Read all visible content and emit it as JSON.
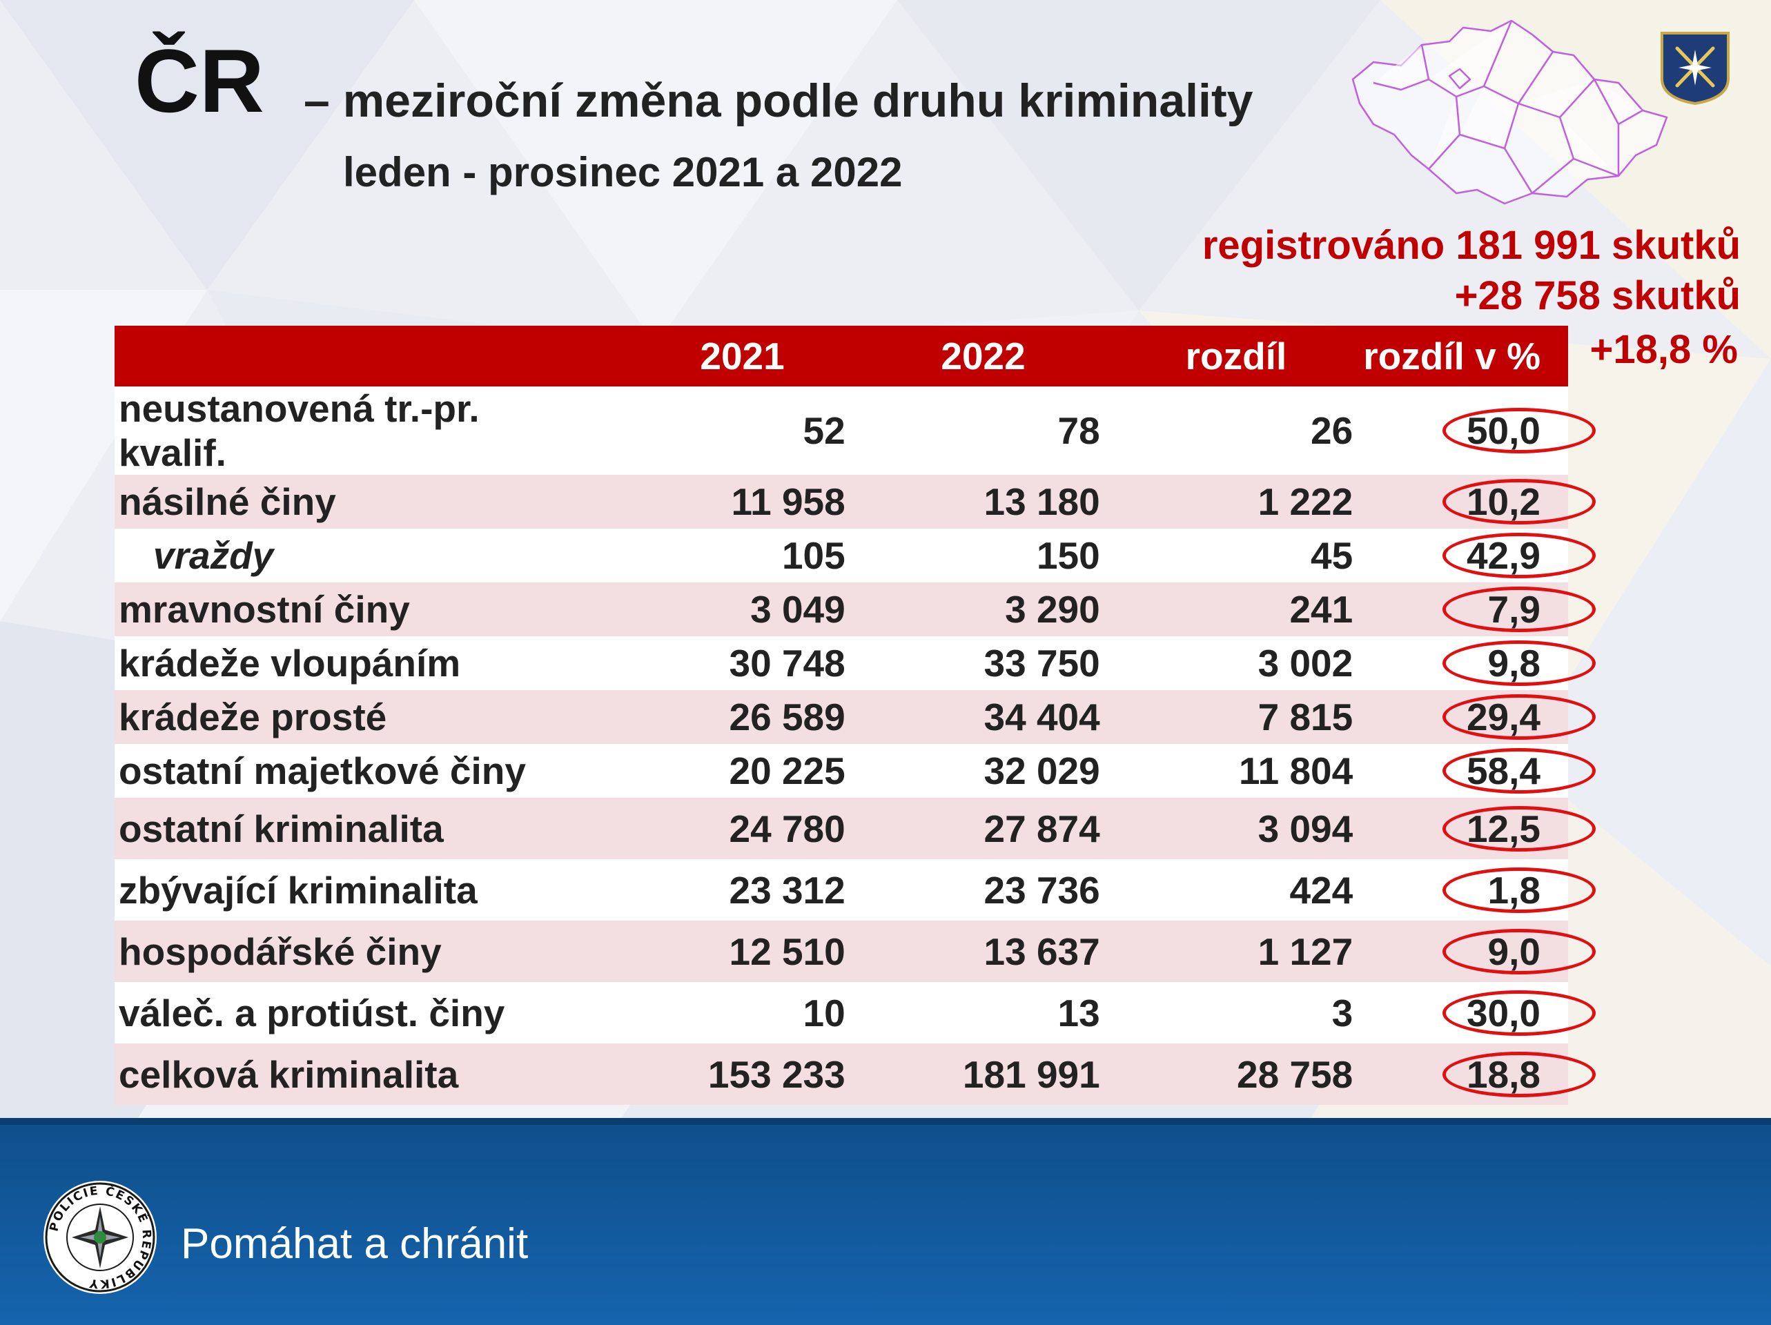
{
  "title": {
    "main": "ČR",
    "rest": "– meziroční změna podle druhu kriminality",
    "subtitle": "leden - prosinec 2021 a 2022"
  },
  "summary": {
    "registered": "registrováno 181 991 skutků",
    "diff_count": "+28 758 skutků",
    "diff_pct": "+18,8 %"
  },
  "table": {
    "headers": [
      "",
      "2021",
      "2022",
      "rozdíl",
      "rozdíl v %"
    ],
    "rows": [
      {
        "label": "neustanovená tr.-pr. kvalif.",
        "y2021": "52",
        "y2022": "78",
        "diff": "26",
        "pct": "50,0"
      },
      {
        "label": "násilné činy",
        "y2021": "11 958",
        "y2022": "13 180",
        "diff": "1 222",
        "pct": "10,2"
      },
      {
        "label": "vraždy",
        "y2021": "105",
        "y2022": "150",
        "diff": "45",
        "pct": "42,9"
      },
      {
        "label": "mravnostní činy",
        "y2021": "3 049",
        "y2022": "3 290",
        "diff": "241",
        "pct": "7,9"
      },
      {
        "label": "krádeže vloupáním",
        "y2021": "30 748",
        "y2022": "33 750",
        "diff": "3 002",
        "pct": "9,8"
      },
      {
        "label": "krádeže prosté",
        "y2021": "26 589",
        "y2022": "34 404",
        "diff": "7 815",
        "pct": "29,4"
      },
      {
        "label": "ostatní majetkové činy",
        "y2021": "20 225",
        "y2022": "32 029",
        "diff": "11 804",
        "pct": "58,4"
      },
      {
        "label": "ostatní kriminalita",
        "y2021": "24 780",
        "y2022": "27 874",
        "diff": "3 094",
        "pct": "12,5"
      },
      {
        "label": "zbývající kriminalita",
        "y2021": "23 312",
        "y2022": "23 736",
        "diff": "424",
        "pct": "1,8"
      },
      {
        "label": "hospodářské činy",
        "y2021": "12 510",
        "y2022": "13 637",
        "diff": "1 127",
        "pct": "9,0"
      },
      {
        "label": "váleč. a protiúst. činy",
        "y2021": "10",
        "y2022": "13",
        "diff": "3",
        "pct": "30,0"
      },
      {
        "label": "celková kriminalita",
        "y2021": "153 233",
        "y2022": "181 991",
        "diff": "28 758",
        "pct": "18,8"
      }
    ]
  },
  "footer": {
    "motto": "Pomáhat a chránit",
    "seal_text": "POLICIE ČESKÉ REPUBLIKY"
  },
  "colors": {
    "accent_red": "#c00000",
    "ring_red": "#e01010",
    "row_alt": "#f3dfe1",
    "footer_blue": "#1564ad",
    "map_outline": "#c060e0"
  }
}
